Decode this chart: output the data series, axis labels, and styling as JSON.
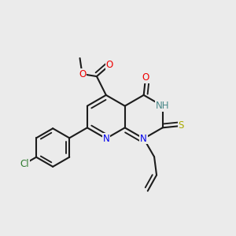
{
  "bg_color": "#ebebeb",
  "bond_color": "#1c1c1c",
  "bond_lw": 1.5,
  "atom_colors": {
    "N": "#0000ee",
    "O": "#ee0000",
    "S": "#aaaa00",
    "Cl": "#2e7a2e",
    "NH": "#4a8888",
    "C": "#1c1c1c"
  },
  "afs": 8.5,
  "bl": 0.092
}
